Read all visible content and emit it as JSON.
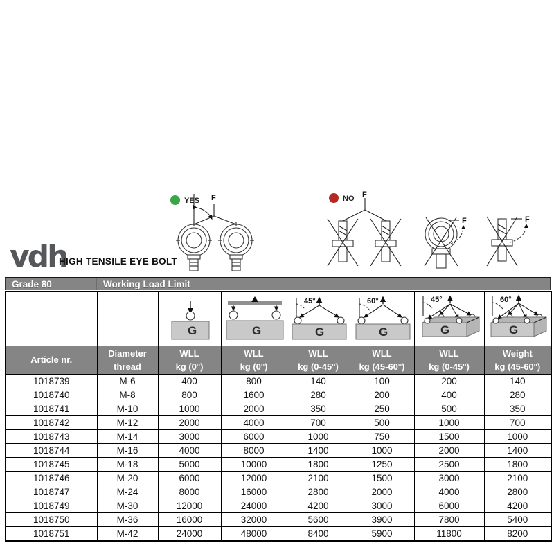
{
  "logo": {
    "text": "vdh"
  },
  "title": "HIGH TENSILE EYE BOLT",
  "usage": {
    "yes_label": "YES",
    "no_label": "NO",
    "force_label": "F"
  },
  "band": {
    "grade": "Grade 80",
    "wll": "Working Load Limit"
  },
  "colors": {
    "band_gray": "#858585",
    "gbox_gray": "#c9c9c9",
    "yes_green": "#3aa647",
    "no_red": "#b22a22"
  },
  "table": {
    "icon_row": [
      {
        "name": "",
        "g": "",
        "angle": ""
      },
      {
        "name": "",
        "g": "",
        "angle": ""
      },
      {
        "name": "vertical-lift-single-icon",
        "g": "G",
        "angle": ""
      },
      {
        "name": "vertical-lift-double-icon",
        "g": "G",
        "angle": ""
      },
      {
        "name": "two-leg-sling-45-icon",
        "g": "G",
        "angle": "45°"
      },
      {
        "name": "two-leg-sling-60-icon",
        "g": "G",
        "angle": "60°"
      },
      {
        "name": "four-leg-sling-45-icon",
        "g": "G",
        "angle": "45°"
      },
      {
        "name": "four-leg-sling-60-icon",
        "g": "G",
        "angle": "60°"
      }
    ],
    "headers": [
      {
        "line1": "Article nr.",
        "line2": ""
      },
      {
        "line1": "Diameter",
        "line2": "thread"
      },
      {
        "line1": "WLL",
        "line2": "kg (0°)"
      },
      {
        "line1": "WLL",
        "line2": "kg (0°)"
      },
      {
        "line1": "WLL",
        "line2": "kg (0-45°)"
      },
      {
        "line1": "WLL",
        "line2": "kg (45-60°)"
      },
      {
        "line1": "WLL",
        "line2": "kg (0-45°)"
      },
      {
        "line1": "Weight",
        "line2": "kg (45-60°)"
      }
    ],
    "rows": [
      [
        "1018739",
        "M-6",
        "400",
        "800",
        "140",
        "100",
        "200",
        "140"
      ],
      [
        "1018740",
        "M-8",
        "800",
        "1600",
        "280",
        "200",
        "400",
        "280"
      ],
      [
        "1018741",
        "M-10",
        "1000",
        "2000",
        "350",
        "250",
        "500",
        "350"
      ],
      [
        "1018742",
        "M-12",
        "2000",
        "4000",
        "700",
        "500",
        "1000",
        "700"
      ],
      [
        "1018743",
        "M-14",
        "3000",
        "6000",
        "1000",
        "750",
        "1500",
        "1000"
      ],
      [
        "1018744",
        "M-16",
        "4000",
        "8000",
        "1400",
        "1000",
        "2000",
        "1400"
      ],
      [
        "1018745",
        "M-18",
        "5000",
        "10000",
        "1800",
        "1250",
        "2500",
        "1800"
      ],
      [
        "1018746",
        "M-20",
        "6000",
        "12000",
        "2100",
        "1500",
        "3000",
        "2100"
      ],
      [
        "1018747",
        "M-24",
        "8000",
        "16000",
        "2800",
        "2000",
        "4000",
        "2800"
      ],
      [
        "1018749",
        "M-30",
        "12000",
        "24000",
        "4200",
        "3000",
        "6000",
        "4200"
      ],
      [
        "1018750",
        "M-36",
        "16000",
        "32000",
        "5600",
        "3900",
        "7800",
        "5400"
      ],
      [
        "1018751",
        "M-42",
        "24000",
        "48000",
        "8400",
        "5900",
        "11800",
        "8200"
      ]
    ]
  }
}
